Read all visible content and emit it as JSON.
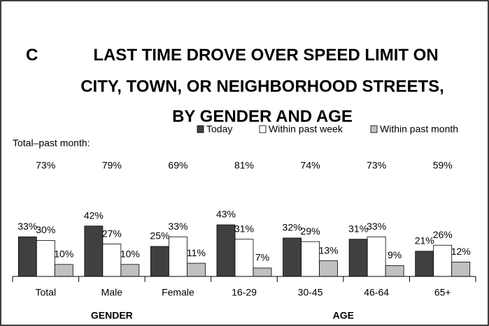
{
  "chart_data": {
    "type": "bar",
    "panel": "C",
    "title": [
      "LAST TIME DROVE OVER SPEED LIMIT ON",
      "CITY, TOWN, OR NEIGHBORHOOD STREETS,",
      "BY GENDER AND AGE"
    ],
    "categories": [
      "Total",
      "Male",
      "Female",
      "16-29",
      "30-45",
      "46-64",
      "65+"
    ],
    "groups": [
      {
        "label": "GENDER",
        "from": 0,
        "to": 2
      },
      {
        "label": "AGE",
        "from": 3,
        "to": 6
      }
    ],
    "series": [
      {
        "name": "Today",
        "color": "#404040",
        "values": [
          33,
          42,
          25,
          43,
          32,
          31,
          21
        ],
        "value_labels": [
          "33%",
          "42%",
          "25%",
          "43%",
          "32%",
          "31%",
          "21%"
        ]
      },
      {
        "name": "Within past week",
        "color": "#ffffff",
        "values": [
          30,
          27,
          33,
          31,
          29,
          33,
          26
        ],
        "value_labels": [
          "30%",
          "27%",
          "33%",
          "31%",
          "29%",
          "33%",
          "26%"
        ]
      },
      {
        "name": "Within past month",
        "color": "#c0c0c0",
        "values": [
          10,
          10,
          11,
          7,
          13,
          9,
          12
        ],
        "value_labels": [
          "10%",
          "10%",
          "11%",
          "7%",
          "13%",
          "9%",
          "12%"
        ]
      }
    ],
    "totals": {
      "label": "Total–past month:",
      "values": [
        73,
        79,
        69,
        81,
        74,
        73,
        59
      ],
      "value_labels": [
        "73%",
        "79%",
        "69%",
        "81%",
        "74%",
        "73%",
        "59%"
      ]
    }
  }
}
